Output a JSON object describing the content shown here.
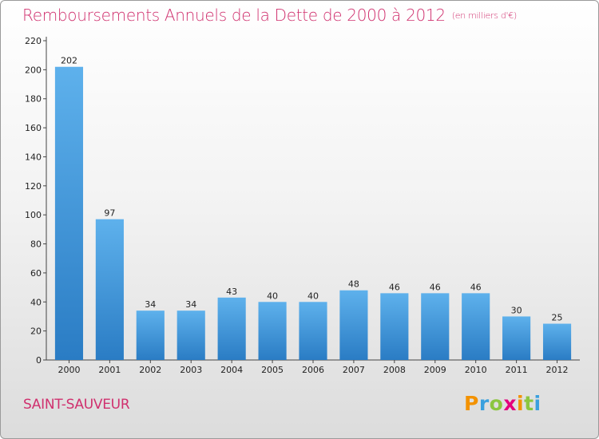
{
  "title": "Remboursements Annuels de la Dette de 2000 à 2012",
  "subtitle": "(en milliers d'€)",
  "commune": "SAINT-SAUVEUR",
  "logo": {
    "letters": [
      "P",
      "r",
      "o",
      "x",
      "i",
      "t",
      "i"
    ],
    "colors": [
      "#f39200",
      "#3aa0de",
      "#8cc63f",
      "#e4007d",
      "#f39200",
      "#8cc63f",
      "#3aa0de"
    ]
  },
  "chart_data": {
    "type": "bar",
    "categories": [
      "2000",
      "2001",
      "2002",
      "2003",
      "2004",
      "2005",
      "2006",
      "2007",
      "2008",
      "2009",
      "2010",
      "2011",
      "2012"
    ],
    "values": [
      202,
      97,
      34,
      34,
      43,
      40,
      40,
      48,
      46,
      46,
      46,
      30,
      25
    ],
    "ylim": [
      0,
      220
    ],
    "yticks": [
      0,
      20,
      40,
      60,
      80,
      100,
      120,
      140,
      160,
      180,
      200,
      220
    ],
    "bar_color": "#3d8fd6",
    "grid": false
  }
}
